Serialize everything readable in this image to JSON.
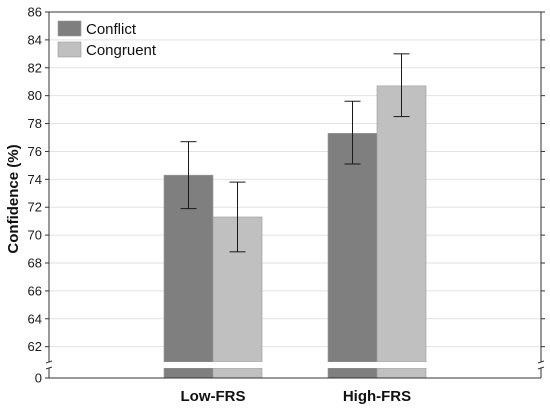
{
  "chart_data": {
    "type": "bar",
    "ylabel": "Confidence (%)",
    "xlabel": "",
    "categories": [
      "Low-FRS",
      "High-FRS"
    ],
    "series": [
      {
        "name": "Conflict",
        "values": [
          74.3,
          77.3
        ],
        "err_low": [
          71.9,
          75.1
        ],
        "err_high": [
          76.7,
          79.6
        ],
        "color": "#7f7f7f"
      },
      {
        "name": "Congruent",
        "values": [
          71.3,
          80.7
        ],
        "err_low": [
          68.8,
          78.5
        ],
        "err_high": [
          73.8,
          83.0
        ],
        "color": "#c0c0c0"
      }
    ],
    "ylim": [
      60,
      86
    ],
    "yticks": [
      62,
      64,
      66,
      68,
      70,
      72,
      74,
      76,
      78,
      80,
      82,
      84,
      86
    ],
    "axis_break": {
      "lower_tick": 0
    },
    "grid": "horizontal",
    "legend": "top-left"
  }
}
